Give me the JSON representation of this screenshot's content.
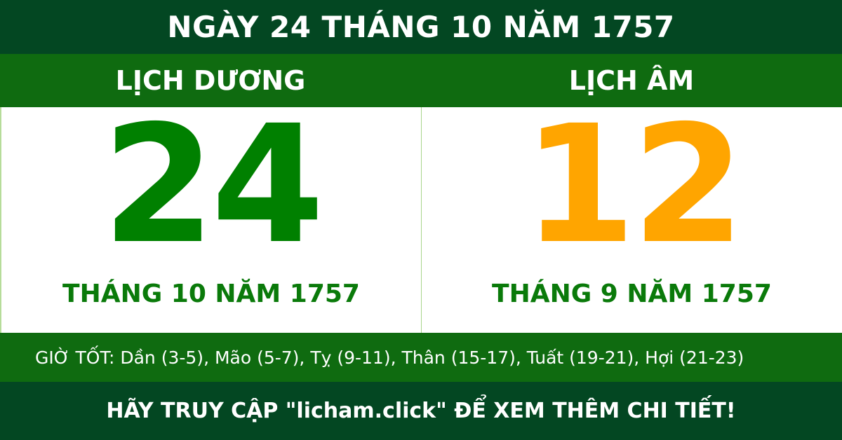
{
  "title": "NGÀY 24 THÁNG 10 NĂM 1757",
  "solar": {
    "label": "LỊCH DƯƠNG",
    "day": "24",
    "month_year": "THÁNG 10 NĂM 1757"
  },
  "lunar": {
    "label": "LỊCH ÂM",
    "day": "12",
    "month_year": "THÁNG 9 NĂM 1757"
  },
  "good_hours": "GIỜ TỐT: Dần (3-5), Mão (5-7), Tỵ (9-11), Thân (15-17), Tuất (19-21), Hợi (21-23)",
  "footer": "HÃY TRUY CẬP \"licham.click\" ĐỂ XEM THÊM CHI TIẾT!",
  "colors": {
    "dark_green": "#034722",
    "band_green": "#0f6b10",
    "solar_green": "#008000",
    "lunar_orange": "#ffa500"
  }
}
